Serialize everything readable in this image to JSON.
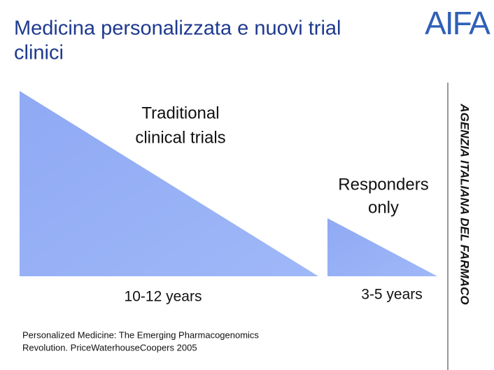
{
  "header": {
    "title_lines": [
      "Medicina personalizzata e nuovi trial",
      "clinici"
    ],
    "logo": "AIFA"
  },
  "side_text": "AGENZIA ITALIANA DEL FARMACO",
  "diagram": {
    "traditional": {
      "label_lines": [
        "Traditional",
        "clinical trials"
      ],
      "duration": "10-12 years"
    },
    "responders": {
      "label_lines": [
        "Responders",
        "only"
      ],
      "duration": "3-5 years"
    }
  },
  "citation_lines": [
    "Personalized Medicine: The Emerging Pharmacogenomics",
    "Revolution. PriceWaterhouseCoopers 2005"
  ]
}
